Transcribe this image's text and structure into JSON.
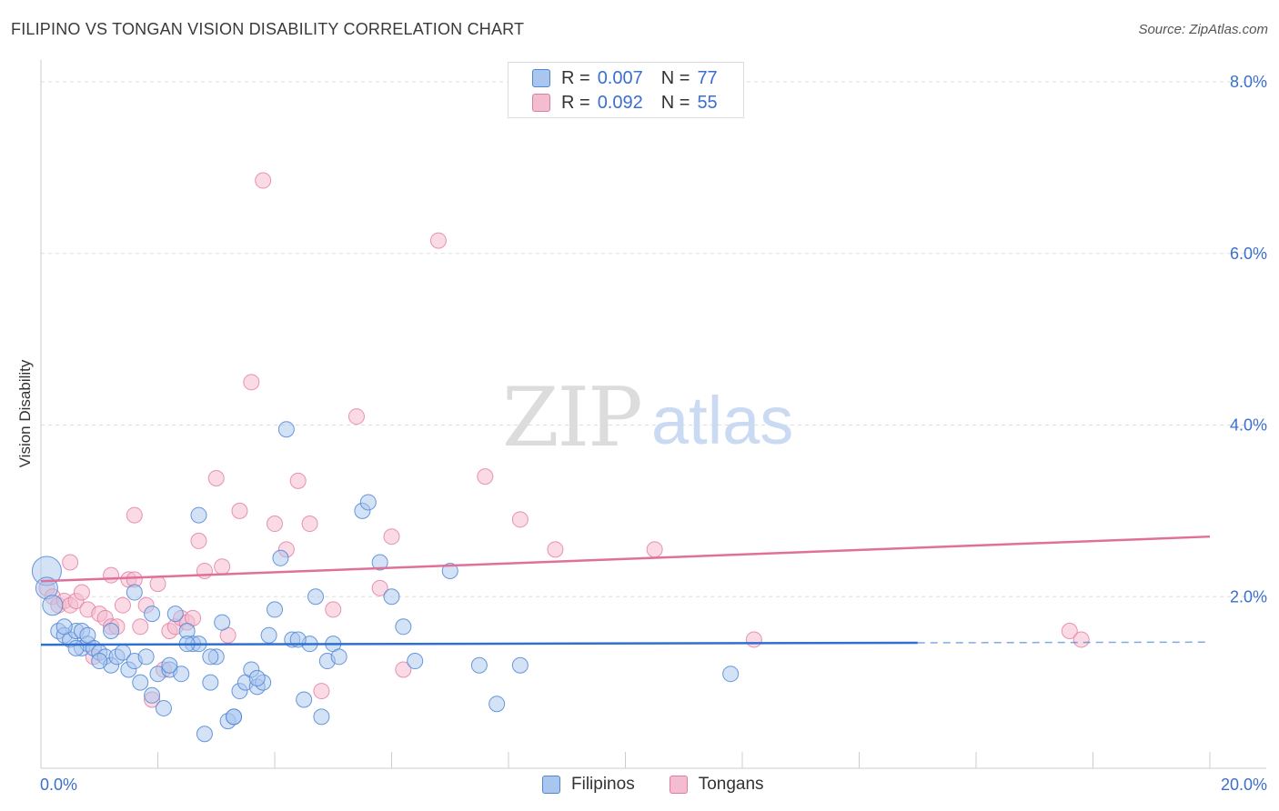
{
  "title": "FILIPINO VS TONGAN VISION DISABILITY CORRELATION CHART",
  "source": "Source: ZipAtlas.com",
  "watermark": {
    "zip": "ZIP",
    "atlas": "atlas"
  },
  "legend_top": [
    {
      "r_label": "R =",
      "r_value": "0.007",
      "n_label": "N =",
      "n_value": "77"
    },
    {
      "r_label": "R =",
      "r_value": "0.092",
      "n_label": "N =",
      "n_value": "55"
    }
  ],
  "colors": {
    "blue_fill": "#a9c6ee",
    "blue_stroke": "#4f86d6",
    "blue_line": "#2f6fd0",
    "pink_fill": "#f4bcd0",
    "pink_stroke": "#e27ba0",
    "pink_line": "#e0709a",
    "axis_text": "#3b6fcf",
    "grid": "#dddddd"
  },
  "chart_data": {
    "type": "scatter",
    "title": "FILIPINO VS TONGAN VISION DISABILITY CORRELATION CHART",
    "xlabel": "",
    "ylabel": "Vision Disability",
    "xlim": [
      0,
      20
    ],
    "ylim": [
      0,
      8
    ],
    "x_tick_labels": [
      "0.0%",
      "20.0%"
    ],
    "y_tick_labels": [
      "2.0%",
      "4.0%",
      "6.0%",
      "8.0%"
    ],
    "y_ticks": [
      2,
      4,
      6,
      8
    ],
    "grid": true,
    "legend_position": "bottom",
    "series": [
      {
        "name": "Filipinos",
        "R": 0.007,
        "N": 77,
        "trend": {
          "x_start": 0,
          "y_start": 1.44,
          "x_solid_end": 15,
          "x_end": 20,
          "y_end": 1.47
        },
        "points": [
          [
            0.1,
            2.3
          ],
          [
            0.1,
            2.1
          ],
          [
            0.2,
            1.9
          ],
          [
            0.3,
            1.6
          ],
          [
            0.4,
            1.55
          ],
          [
            0.5,
            1.5
          ],
          [
            0.6,
            1.6
          ],
          [
            0.7,
            1.4
          ],
          [
            0.7,
            1.6
          ],
          [
            0.8,
            1.45
          ],
          [
            0.9,
            1.4
          ],
          [
            1.0,
            1.35
          ],
          [
            1.1,
            1.3
          ],
          [
            1.2,
            1.2
          ],
          [
            1.3,
            1.3
          ],
          [
            1.4,
            1.35
          ],
          [
            1.5,
            1.15
          ],
          [
            1.6,
            1.25
          ],
          [
            1.7,
            1.0
          ],
          [
            1.8,
            1.3
          ],
          [
            1.9,
            0.85
          ],
          [
            2.0,
            1.1
          ],
          [
            2.1,
            0.7
          ],
          [
            2.2,
            1.15
          ],
          [
            2.3,
            1.8
          ],
          [
            2.4,
            1.1
          ],
          [
            2.5,
            1.6
          ],
          [
            2.6,
            1.45
          ],
          [
            2.7,
            1.45
          ],
          [
            2.8,
            0.4
          ],
          [
            2.9,
            1.0
          ],
          [
            3.0,
            1.3
          ],
          [
            3.1,
            1.7
          ],
          [
            3.2,
            0.55
          ],
          [
            3.3,
            0.6
          ],
          [
            3.4,
            0.9
          ],
          [
            3.5,
            1.0
          ],
          [
            3.6,
            1.15
          ],
          [
            3.7,
            0.95
          ],
          [
            3.8,
            1.0
          ],
          [
            3.9,
            1.55
          ],
          [
            4.0,
            1.85
          ],
          [
            4.1,
            2.45
          ],
          [
            4.2,
            3.95
          ],
          [
            4.3,
            1.5
          ],
          [
            4.5,
            0.8
          ],
          [
            4.6,
            1.45
          ],
          [
            4.7,
            2.0
          ],
          [
            4.8,
            0.6
          ],
          [
            4.9,
            1.25
          ],
          [
            5.0,
            1.45
          ],
          [
            5.1,
            1.3
          ],
          [
            5.5,
            3.0
          ],
          [
            5.6,
            3.1
          ],
          [
            5.8,
            2.4
          ],
          [
            6.0,
            2.0
          ],
          [
            6.2,
            1.65
          ],
          [
            6.4,
            1.25
          ],
          [
            7.0,
            2.3
          ],
          [
            7.5,
            1.2
          ],
          [
            7.8,
            0.75
          ],
          [
            8.2,
            1.2
          ],
          [
            11.8,
            1.1
          ],
          [
            2.7,
            2.95
          ],
          [
            1.6,
            2.05
          ],
          [
            1.9,
            1.8
          ],
          [
            2.5,
            1.45
          ],
          [
            1.2,
            1.6
          ],
          [
            0.8,
            1.55
          ],
          [
            0.6,
            1.4
          ],
          [
            0.4,
            1.65
          ],
          [
            1.0,
            1.25
          ],
          [
            2.2,
            1.2
          ],
          [
            3.3,
            0.6
          ],
          [
            4.4,
            1.5
          ],
          [
            2.9,
            1.3
          ],
          [
            3.7,
            1.05
          ]
        ],
        "sizes_note": "first point larger"
      },
      {
        "name": "Tongans",
        "R": 0.092,
        "N": 55,
        "trend": {
          "x_start": 0,
          "y_start": 2.18,
          "x_end": 20,
          "y_end": 2.7
        },
        "points": [
          [
            0.1,
            2.1
          ],
          [
            0.2,
            2.0
          ],
          [
            0.3,
            1.9
          ],
          [
            0.4,
            1.95
          ],
          [
            0.5,
            1.9
          ],
          [
            0.6,
            1.95
          ],
          [
            0.7,
            2.05
          ],
          [
            0.8,
            1.85
          ],
          [
            0.9,
            1.3
          ],
          [
            1.0,
            1.8
          ],
          [
            1.1,
            1.75
          ],
          [
            1.2,
            1.65
          ],
          [
            1.3,
            1.65
          ],
          [
            1.4,
            1.9
          ],
          [
            1.5,
            2.2
          ],
          [
            1.6,
            2.2
          ],
          [
            1.7,
            1.65
          ],
          [
            1.8,
            1.9
          ],
          [
            1.9,
            0.8
          ],
          [
            2.0,
            2.15
          ],
          [
            2.1,
            1.15
          ],
          [
            2.2,
            1.6
          ],
          [
            2.3,
            1.65
          ],
          [
            2.4,
            1.75
          ],
          [
            2.5,
            1.7
          ],
          [
            2.6,
            1.75
          ],
          [
            2.7,
            2.65
          ],
          [
            2.8,
            2.3
          ],
          [
            3.0,
            3.38
          ],
          [
            3.1,
            2.35
          ],
          [
            3.2,
            1.55
          ],
          [
            3.4,
            3.0
          ],
          [
            3.6,
            4.5
          ],
          [
            3.8,
            6.85
          ],
          [
            4.0,
            2.85
          ],
          [
            4.2,
            2.55
          ],
          [
            4.4,
            3.35
          ],
          [
            4.6,
            2.85
          ],
          [
            4.8,
            0.9
          ],
          [
            5.0,
            1.85
          ],
          [
            5.4,
            4.1
          ],
          [
            5.8,
            2.1
          ],
          [
            6.0,
            2.7
          ],
          [
            6.2,
            1.15
          ],
          [
            6.8,
            6.15
          ],
          [
            7.6,
            3.4
          ],
          [
            8.2,
            2.9
          ],
          [
            8.8,
            2.55
          ],
          [
            10.5,
            2.55
          ],
          [
            12.2,
            1.5
          ],
          [
            17.6,
            1.6
          ],
          [
            17.8,
            1.5
          ],
          [
            1.2,
            2.25
          ],
          [
            0.5,
            2.4
          ],
          [
            1.6,
            2.95
          ]
        ]
      }
    ]
  },
  "bottom_legend": [
    "Filipinos",
    "Tongans"
  ]
}
